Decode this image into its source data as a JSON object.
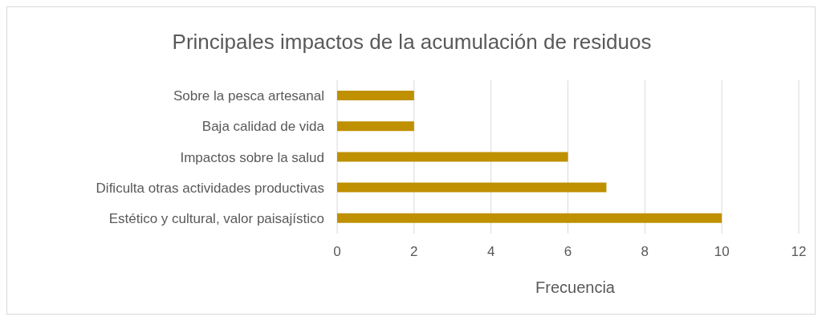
{
  "chart_data": {
    "type": "bar",
    "orientation": "horizontal",
    "title": "Principales impactos de la acumulación de residuos",
    "xlabel": "Frecuencia",
    "categories": [
      "Sobre la pesca artesanal",
      "Baja calidad de vida",
      "Impactos sobre la salud",
      "Dificulta otras actividades productivas",
      "Estético y cultural, valor paisajístico"
    ],
    "values": [
      2,
      2,
      6,
      7,
      10
    ],
    "color": "#bf9000",
    "xlim": [
      0,
      12
    ],
    "xticks": [
      0,
      2,
      4,
      6,
      8,
      10,
      12
    ],
    "grid": "x"
  }
}
